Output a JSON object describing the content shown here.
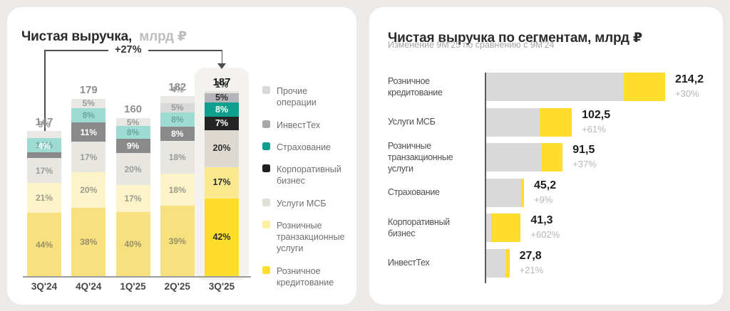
{
  "colors": {
    "page_bg": "#EBEAE8",
    "card_bg": "#FFFFFF",
    "brand_yellow": "#FFDD2D",
    "prev_period_gray": "#D9D9D9",
    "annotation_line": "#4D4D4D",
    "segment_colors": {
      "other": {
        "muted": "#E9E8E5",
        "vivid": "#E7E5E2",
        "legend": "#D8D8D8",
        "text_muted": "#999999",
        "text_vivid": "#2D2D2D"
      },
      "investtech": {
        "muted": "#D9D9DC",
        "vivid": "#B4B4BA",
        "legend": "#A8A8A8",
        "text_muted": "#999999",
        "text_vivid": "#2D2D2D"
      },
      "insurance": {
        "muted": "#9EDCD3",
        "vivid": "#0FA08D",
        "legend": "#0FA08D",
        "text_muted": "#6AA69D",
        "text_vivid": "#FFFFFF"
      },
      "corporate": {
        "muted": "#8A8A8A",
        "vivid": "#242424",
        "legend": "#1F1F1F",
        "text_muted": "#FFFFFF",
        "text_vivid": "#FFFFFF"
      },
      "smb": {
        "muted": "#E8E6E0",
        "vivid": "#DDD9D1",
        "legend": "#E2DFD8",
        "text_muted": "#999999",
        "text_vivid": "#2D2D2D"
      },
      "transactional": {
        "muted": "#FCF3C9",
        "vivid": "#FAE88F",
        "legend": "#FFEFA0",
        "text_muted": "#9C9C8E",
        "text_vivid": "#2D2D2D"
      },
      "lending": {
        "muted": "#F7E17E",
        "vivid": "#FFDD2D",
        "legend": "#FFDD2D",
        "text_muted": "#99906A",
        "text_vivid": "#2D2D2D"
      }
    }
  },
  "left_panel": {
    "title": "Чистая выручка,",
    "title_unit": "млрд ₽",
    "chart_data": {
      "type": "bar",
      "subtype": "stacked-percent-columns",
      "unit": "млрд ₽",
      "categories": [
        "3Q'24",
        "4Q'24",
        "1Q'25",
        "2Q'25",
        "3Q'25"
      ],
      "totals": [
        147,
        179,
        160,
        182,
        187
      ],
      "highlighted_category": "3Q'25",
      "annotation": {
        "label": "+27%",
        "from": "3Q'24",
        "to": "3Q'25"
      },
      "legend": [
        {
          "key": "other",
          "label": "Прочие операции"
        },
        {
          "key": "investtech",
          "label": "ИнвестТех"
        },
        {
          "key": "insurance",
          "label": "Страхование"
        },
        {
          "key": "corporate",
          "label": "Корпоративный бизнес"
        },
        {
          "key": "smb",
          "label": "Услуги МСБ"
        },
        {
          "key": "transactional",
          "label": "Розничные транзакционные услуги"
        },
        {
          "key": "lending",
          "label": "Розничное кредитование"
        }
      ],
      "bars": [
        {
          "category": "3Q'24",
          "total": 147,
          "highlighted": false,
          "segments": [
            {
              "key": "other",
              "pct": 5
            },
            {
              "key": "insurance",
              "pct": 10
            },
            {
              "key": "corporate",
              "pct": 4
            },
            {
              "key": "smb",
              "pct": 17
            },
            {
              "key": "transactional",
              "pct": 21
            },
            {
              "key": "lending",
              "pct": 44
            }
          ]
        },
        {
          "category": "4Q'24",
          "total": 179,
          "highlighted": false,
          "segments": [
            {
              "key": "other",
              "pct": 5
            },
            {
              "key": "insurance",
              "pct": 8
            },
            {
              "key": "corporate",
              "pct": 11
            },
            {
              "key": "smb",
              "pct": 17
            },
            {
              "key": "transactional",
              "pct": 20
            },
            {
              "key": "lending",
              "pct": 38
            }
          ]
        },
        {
          "category": "1Q'25",
          "total": 160,
          "highlighted": false,
          "segments": [
            {
              "key": "other",
              "pct": 5
            },
            {
              "key": "insurance",
              "pct": 8
            },
            {
              "key": "corporate",
              "pct": 9
            },
            {
              "key": "smb",
              "pct": 20
            },
            {
              "key": "transactional",
              "pct": 17
            },
            {
              "key": "lending",
              "pct": 40
            }
          ]
        },
        {
          "category": "2Q'25",
          "total": 182,
          "highlighted": false,
          "segments": [
            {
              "key": "other",
              "pct": 4
            },
            {
              "key": "investtech",
              "pct": 5
            },
            {
              "key": "insurance",
              "pct": 8
            },
            {
              "key": "corporate",
              "pct": 8
            },
            {
              "key": "smb",
              "pct": 18
            },
            {
              "key": "transactional",
              "pct": 18
            },
            {
              "key": "lending",
              "pct": 39
            }
          ]
        },
        {
          "category": "3Q'25",
          "total": 187,
          "highlighted": true,
          "segments": [
            {
              "key": "other",
              "pct": 1
            },
            {
              "key": "investtech",
              "pct": 5
            },
            {
              "key": "insurance",
              "pct": 8
            },
            {
              "key": "corporate",
              "pct": 7
            },
            {
              "key": "smb",
              "pct": 20
            },
            {
              "key": "transactional",
              "pct": 17
            },
            {
              "key": "lending",
              "pct": 42
            }
          ]
        }
      ]
    }
  },
  "right_panel": {
    "title": "Чистая выручка по сегментам, млрд ₽",
    "subtitle": "Изменение 9М'25 по сравнению с 9М'24",
    "chart_data": {
      "type": "bar",
      "subtype": "horizontal-value-growth",
      "unit": "млрд ₽",
      "rows": [
        {
          "label": "Розничное кредитование",
          "value": 214.2,
          "value_label": "214,2",
          "growth_pct": 30,
          "growth_label": "+30%"
        },
        {
          "label": "Услуги МСБ",
          "value": 102.5,
          "value_label": "102,5",
          "growth_pct": 61,
          "growth_label": "+61%"
        },
        {
          "label": "Розничные транзакционные услуги",
          "value": 91.5,
          "value_label": "91,5",
          "growth_pct": 37,
          "growth_label": "+37%"
        },
        {
          "label": "Страхование",
          "value": 45.2,
          "value_label": "45,2",
          "growth_pct": 9,
          "growth_label": "+9%"
        },
        {
          "label": "Корпоративный бизнес",
          "value": 41.3,
          "value_label": "41,3",
          "growth_pct": 602,
          "growth_label": "+602%"
        },
        {
          "label": "ИнвестТех",
          "value": 27.8,
          "value_label": "27,8",
          "growth_pct": 21,
          "growth_label": "+21%"
        }
      ]
    }
  }
}
